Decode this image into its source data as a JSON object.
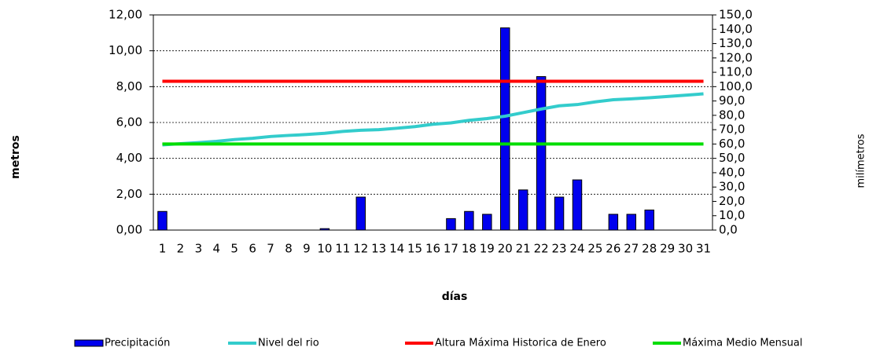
{
  "chart_data": {
    "type": "bar",
    "x_label": "días",
    "y_label": "metros",
    "y2_label": "milímetros",
    "categories": [
      "1",
      "2",
      "3",
      "4",
      "5",
      "6",
      "7",
      "8",
      "9",
      "10",
      "11",
      "12",
      "13",
      "14",
      "15",
      "16",
      "17",
      "18",
      "19",
      "20",
      "21",
      "22",
      "23",
      "24",
      "25",
      "26",
      "27",
      "28",
      "29",
      "30",
      "31"
    ],
    "series": [
      {
        "name": "Precipitación",
        "type": "bar",
        "axis": "y2",
        "color": "#0000ee",
        "values": [
          13,
          0,
          0,
          0,
          0,
          0,
          0,
          0,
          0,
          1,
          0,
          23,
          0,
          0,
          0,
          0,
          8,
          13,
          11,
          141,
          28,
          107,
          23,
          35,
          0,
          11,
          11,
          14,
          0,
          0,
          0
        ]
      },
      {
        "name": "Nivel del rio",
        "type": "line",
        "color": "#33cccc",
        "values": [
          4.75,
          4.82,
          4.88,
          4.95,
          5.05,
          5.12,
          5.22,
          5.28,
          5.33,
          5.4,
          5.5,
          5.57,
          5.6,
          5.68,
          5.77,
          5.9,
          5.98,
          6.12,
          6.22,
          6.35,
          6.55,
          6.75,
          6.93,
          7.0,
          7.15,
          7.27,
          7.32,
          7.38,
          7.45,
          7.52,
          7.6
        ]
      },
      {
        "name": "Altura Máxima Historica de Enero",
        "type": "line",
        "color": "#ff0000",
        "values": [
          8.3,
          8.3,
          8.3,
          8.3,
          8.3,
          8.3,
          8.3,
          8.3,
          8.3,
          8.3,
          8.3,
          8.3,
          8.3,
          8.3,
          8.3,
          8.3,
          8.3,
          8.3,
          8.3,
          8.3,
          8.3,
          8.3,
          8.3,
          8.3,
          8.3,
          8.3,
          8.3,
          8.3,
          8.3,
          8.3,
          8.3
        ]
      },
      {
        "name": "Máxima Medio Mensual",
        "type": "line",
        "color": "#00dd00",
        "values": [
          4.8,
          4.8,
          4.8,
          4.8,
          4.8,
          4.8,
          4.8,
          4.8,
          4.8,
          4.8,
          4.8,
          4.8,
          4.8,
          4.8,
          4.8,
          4.8,
          4.8,
          4.8,
          4.8,
          4.8,
          4.8,
          4.8,
          4.8,
          4.8,
          4.8,
          4.8,
          4.8,
          4.8,
          4.8,
          4.8,
          4.8
        ]
      }
    ],
    "ylim": [
      0,
      12
    ],
    "yticks": [
      {
        "value": 0,
        "label": "0,00"
      },
      {
        "value": 2,
        "label": "2,00"
      },
      {
        "value": 4,
        "label": "4,00"
      },
      {
        "value": 6,
        "label": "6,00"
      },
      {
        "value": 8,
        "label": "8,00"
      },
      {
        "value": 10,
        "label": "10,00"
      },
      {
        "value": 12,
        "label": "12,00"
      }
    ],
    "y2lim": [
      0,
      150
    ],
    "y2ticks": [
      {
        "value": 0,
        "label": "0,0"
      },
      {
        "value": 10,
        "label": "10,0"
      },
      {
        "value": 20,
        "label": "20,0"
      },
      {
        "value": 30,
        "label": "30,0"
      },
      {
        "value": 40,
        "label": "40,0"
      },
      {
        "value": 50,
        "label": "50,0"
      },
      {
        "value": 60,
        "label": "60,0"
      },
      {
        "value": 70,
        "label": "70,0"
      },
      {
        "value": 80,
        "label": "80,0"
      },
      {
        "value": 90,
        "label": "90,0"
      },
      {
        "value": 100,
        "label": "100,0"
      },
      {
        "value": 110,
        "label": "110,0"
      },
      {
        "value": 120,
        "label": "120,0"
      },
      {
        "value": 130,
        "label": "130,0"
      },
      {
        "value": 140,
        "label": "140,0"
      },
      {
        "value": 150,
        "label": "150,0"
      }
    ],
    "grid": true,
    "legend_position": "bottom"
  }
}
